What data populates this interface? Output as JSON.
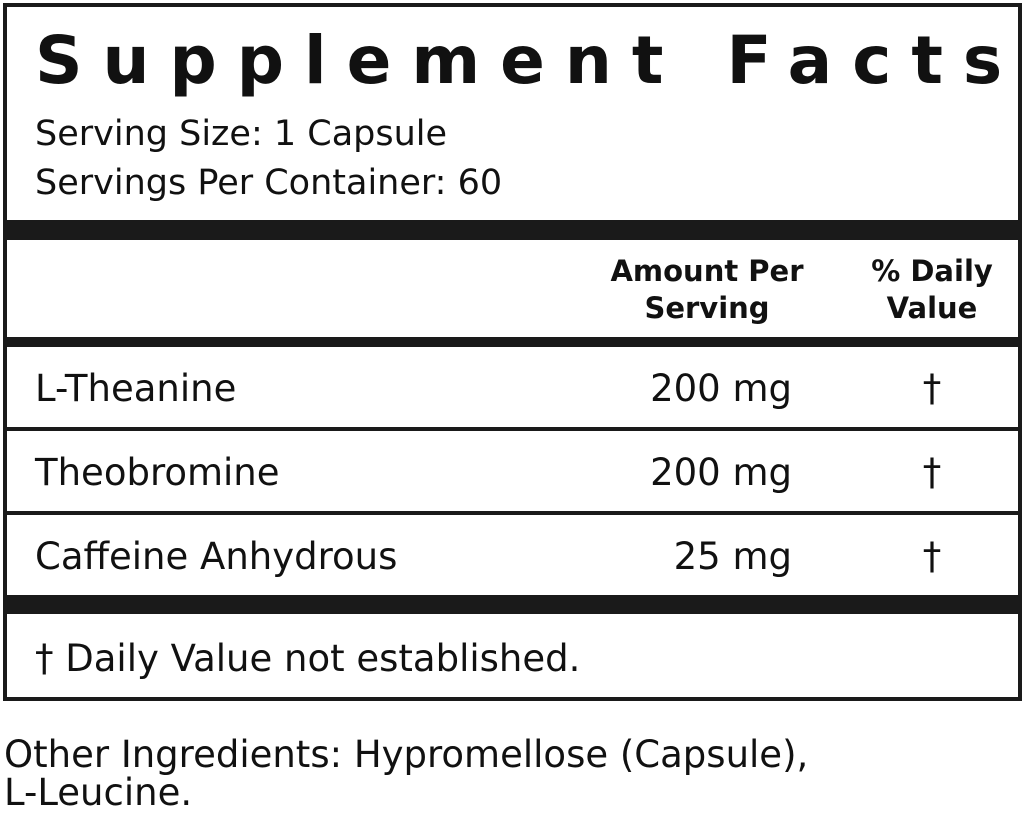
{
  "title": "Supplement Facts",
  "serving_size": "Serving Size: 1 Capsule",
  "servings_per_container": "Servings Per Container: 60",
  "headers": {
    "amount_line1": "Amount Per",
    "amount_line2": "Serving",
    "dv_line1": "% Daily",
    "dv_line2": "Value"
  },
  "rows": [
    {
      "name": "L-Theanine",
      "amount": "200 mg",
      "dv": "†"
    },
    {
      "name": "Theobromine",
      "amount": "200 mg",
      "dv": "†"
    },
    {
      "name": "Caffeine Anhydrous",
      "amount": "25 mg",
      "dv": "†"
    }
  ],
  "footnote": "†  Daily Value not established.",
  "other_ingredients_line1": "Other Ingredients: Hypromellose (Capsule),",
  "other_ingredients_line2": "L-Leucine."
}
